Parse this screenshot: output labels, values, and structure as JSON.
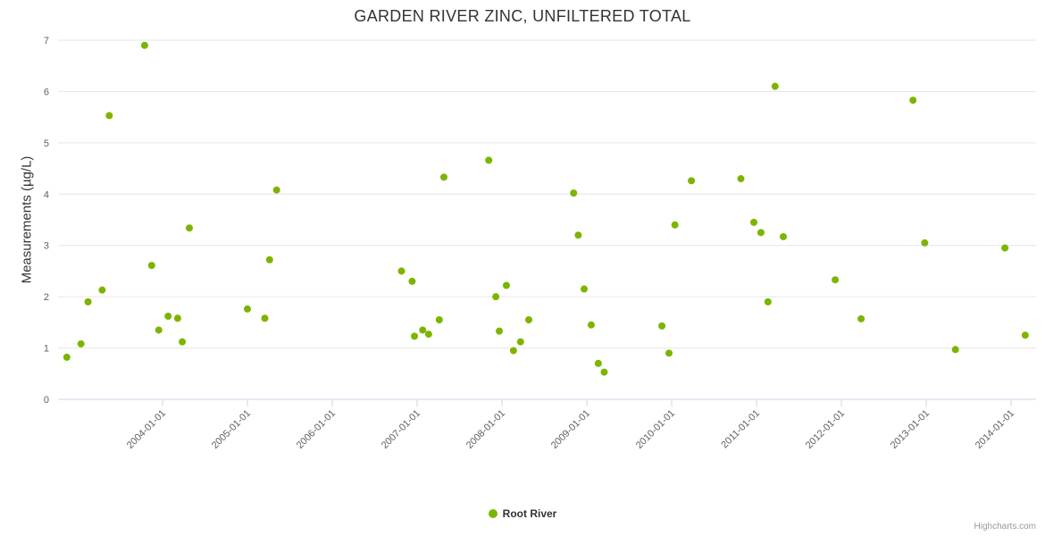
{
  "chart_data": {
    "type": "scatter",
    "title": "GARDEN RIVER ZINC, UNFILTERED TOTAL",
    "ylabel": "Measurements (µg/L)",
    "ylim": [
      0,
      7
    ],
    "yticks": [
      0,
      1,
      2,
      3,
      4,
      5,
      6,
      7
    ],
    "xtick_labels": [
      "2004-01-01",
      "2005-01-01",
      "2006-01-01",
      "2007-01-01",
      "2008-01-01",
      "2009-01-01",
      "2010-01-01",
      "2011-01-01",
      "2012-01-01",
      "2013-01-01",
      "2014-01-01"
    ],
    "grid": true,
    "legend": {
      "label": "Root River",
      "position": "bottom-center"
    },
    "credits": "Highcharts.com",
    "colors": {
      "point": "#7cb500",
      "grid": "#e6e6e6",
      "axis_line": "#ccd6eb",
      "tick_text": "#606060",
      "title_text": "#333333"
    },
    "series": [
      {
        "name": "Root River",
        "points": [
          [
            "2002-11-15",
            0.82
          ],
          [
            "2003-01-15",
            1.08
          ],
          [
            "2003-02-15",
            1.9
          ],
          [
            "2003-04-15",
            2.13
          ],
          [
            "2003-05-15",
            5.53
          ],
          [
            "2003-10-15",
            6.9
          ],
          [
            "2003-11-15",
            2.61
          ],
          [
            "2003-12-15",
            1.35
          ],
          [
            "2004-01-25",
            1.62
          ],
          [
            "2004-03-05",
            1.58
          ],
          [
            "2004-03-25",
            1.12
          ],
          [
            "2004-04-25",
            3.34
          ],
          [
            "2005-01-01",
            1.76
          ],
          [
            "2005-03-15",
            1.58
          ],
          [
            "2005-04-05",
            2.72
          ],
          [
            "2005-05-05",
            4.08
          ],
          [
            "2006-10-25",
            2.5
          ],
          [
            "2006-12-10",
            2.3
          ],
          [
            "2006-12-20",
            1.23
          ],
          [
            "2007-01-25",
            1.35
          ],
          [
            "2007-02-20",
            1.27
          ],
          [
            "2007-04-05",
            1.55
          ],
          [
            "2007-04-25",
            4.33
          ],
          [
            "2007-11-05",
            4.66
          ],
          [
            "2007-12-05",
            2.0
          ],
          [
            "2007-12-20",
            1.33
          ],
          [
            "2008-01-20",
            2.22
          ],
          [
            "2008-02-20",
            0.95
          ],
          [
            "2008-03-20",
            1.12
          ],
          [
            "2008-04-25",
            1.55
          ],
          [
            "2008-11-05",
            4.02
          ],
          [
            "2008-11-25",
            3.2
          ],
          [
            "2008-12-20",
            2.15
          ],
          [
            "2009-01-20",
            1.45
          ],
          [
            "2009-02-20",
            0.7
          ],
          [
            "2009-03-15",
            0.53
          ],
          [
            "2009-11-20",
            1.43
          ],
          [
            "2009-12-20",
            0.9
          ],
          [
            "2010-01-15",
            3.4
          ],
          [
            "2010-03-25",
            4.26
          ],
          [
            "2010-10-25",
            4.3
          ],
          [
            "2010-12-20",
            3.45
          ],
          [
            "2011-01-20",
            3.25
          ],
          [
            "2011-02-20",
            1.9
          ],
          [
            "2011-03-20",
            6.1
          ],
          [
            "2011-04-25",
            3.17
          ],
          [
            "2011-12-05",
            2.33
          ],
          [
            "2012-03-25",
            1.57
          ],
          [
            "2012-11-05",
            5.83
          ],
          [
            "2012-12-25",
            3.05
          ],
          [
            "2013-05-05",
            0.97
          ],
          [
            "2013-12-05",
            2.95
          ],
          [
            "2014-03-01",
            1.25
          ]
        ]
      }
    ]
  }
}
